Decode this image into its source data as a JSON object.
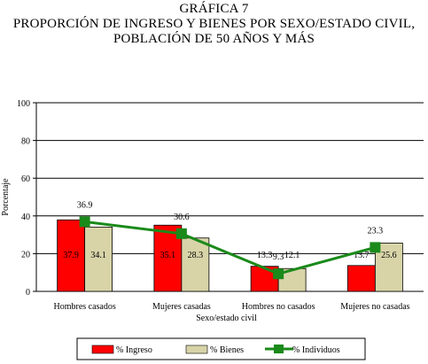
{
  "titles": {
    "line1": "GRÁFICA 7",
    "line2": "PROPORCIÓN DE INGRESO Y BIENES POR SEXO/ESTADO CIVIL,",
    "line3": "POBLACIÓN DE 50 AÑOS Y MÁS"
  },
  "chart_data": {
    "type": "bar",
    "title": "PROPORCIÓN DE INGRESO Y BIENES POR SEXO/ESTADO CIVIL, POBLACIÓN DE 50 AÑOS Y MÁS",
    "xlabel": "Sexo/estado civil",
    "ylabel": "Porcentaje",
    "ylim": [
      0,
      100
    ],
    "yticks": [
      0,
      20,
      40,
      60,
      80,
      100
    ],
    "categories": [
      "Hombres casados",
      "Mujeres casadas",
      "Hombres no casados",
      "Mujeres no casadas"
    ],
    "series": [
      {
        "name": "% Ingreso",
        "type": "bar",
        "color": "#ff0000",
        "values": [
          37.9,
          35.1,
          13.3,
          13.7
        ]
      },
      {
        "name": "% Bienes",
        "type": "bar",
        "color": "#d8d4a8",
        "values": [
          34.1,
          28.3,
          12.1,
          25.6
        ]
      },
      {
        "name": "% Individuos",
        "type": "line",
        "color": "#1a8a1a",
        "values": [
          36.9,
          30.6,
          9.3,
          23.3
        ]
      }
    ],
    "grid": true,
    "legend_position": "bottom"
  }
}
